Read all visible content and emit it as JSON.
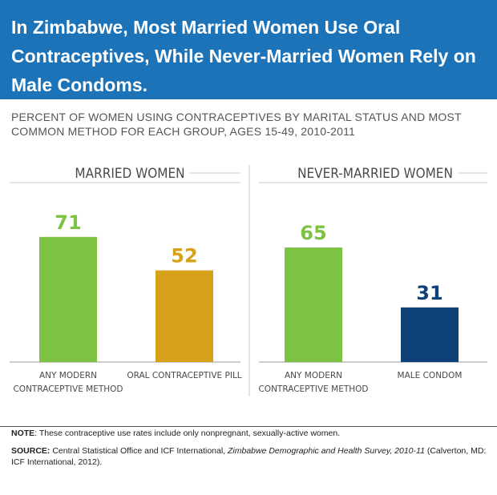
{
  "header": {
    "title": "In Zimbabwe, Most Married Women Use Oral Contraceptives, While Never-Married Women Rely on Male Condoms."
  },
  "subtitle": "PERCENT OF WOMEN USING CONTRACEPTIVES BY MARITAL STATUS AND MOST COMMON METHOD FOR EACH GROUP, AGES 15-49, 2010-2011",
  "colors": {
    "banner": "#1d73b8",
    "green": "#7dc243",
    "gold": "#d7a119",
    "navy": "#0f4179"
  },
  "chart_data": [
    {
      "type": "bar",
      "title": "MARRIED WOMEN",
      "categories": [
        "ANY MODERN CONTRACEPTIVE METHOD",
        "ORAL CONTRACEPTIVE PILL"
      ],
      "category_lines": [
        [
          "ANY MODERN",
          "CONTRACEPTIVE METHOD"
        ],
        [
          "ORAL CONTRACEPTIVE PILL"
        ]
      ],
      "values": [
        71,
        52
      ],
      "bar_colors": [
        "#7dc243",
        "#d7a119"
      ],
      "ylim": [
        0,
        100
      ],
      "grid": false
    },
    {
      "type": "bar",
      "title": "NEVER-MARRIED WOMEN",
      "categories": [
        "ANY MODERN CONTRACEPTIVE METHOD",
        "MALE CONDOM"
      ],
      "category_lines": [
        [
          "ANY MODERN",
          "CONTRACEPTIVE METHOD"
        ],
        [
          "MALE CONDOM"
        ]
      ],
      "values": [
        65,
        31
      ],
      "bar_colors": [
        "#7dc243",
        "#0f4179"
      ],
      "ylim": [
        0,
        100
      ],
      "grid": false
    }
  ],
  "footnotes": {
    "note_label": "NOTE",
    "note_text": ": These contraceptive use rates include only nonpregnant, sexually-active women.",
    "source_label": "SOURCE:",
    "source_text_1": " Central Statistical Office and ICF International, ",
    "source_italic": "Zimbabwe Demographic and Health Survey, 2010-11",
    "source_text_2": " (Calverton, MD: ICF International, 2012)."
  }
}
